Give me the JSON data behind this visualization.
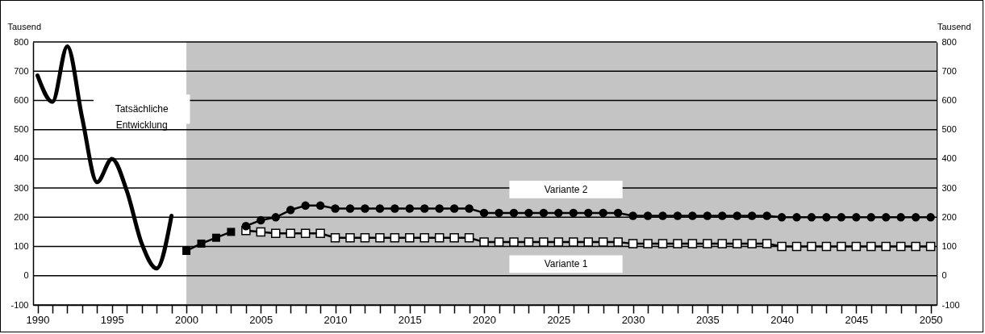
{
  "chart_data": {
    "type": "line",
    "ylabel": "Tausend",
    "y2label": "Tausend",
    "xlim": [
      1989.7,
      2050.4
    ],
    "ylim": [
      -100,
      800
    ],
    "y2lim": [
      -100,
      800
    ],
    "yticks": [
      -100,
      0,
      100,
      200,
      300,
      400,
      500,
      600,
      700,
      800
    ],
    "y2ticks": [
      -100,
      0,
      100,
      200,
      300,
      400,
      500,
      600,
      700,
      800
    ],
    "xticks": [
      1990,
      {
        "value": 1991,
        "label": null
      },
      {
        "value": 1992,
        "label": null
      },
      {
        "value": 1993,
        "label": null
      },
      {
        "value": 1994,
        "label": null
      },
      1995,
      {
        "value": 1996,
        "label": null
      },
      {
        "value": 1997,
        "label": null
      },
      {
        "value": 1998,
        "label": null
      },
      {
        "value": 1999,
        "label": null
      },
      2000,
      {
        "value": 2001,
        "label": null
      },
      {
        "value": 2002,
        "label": null
      },
      {
        "value": 2003,
        "label": null
      },
      {
        "value": 2004,
        "label": null
      },
      2005,
      {
        "value": 2006,
        "label": null
      },
      {
        "value": 2007,
        "label": null
      },
      {
        "value": 2008,
        "label": null
      },
      {
        "value": 2009,
        "label": null
      },
      2010,
      {
        "value": 2011,
        "label": null
      },
      {
        "value": 2012,
        "label": null
      },
      {
        "value": 2013,
        "label": null
      },
      {
        "value": 2014,
        "label": null
      },
      2015,
      {
        "value": 2016,
        "label": null
      },
      {
        "value": 2017,
        "label": null
      },
      {
        "value": 2018,
        "label": null
      },
      {
        "value": 2019,
        "label": null
      },
      2020,
      {
        "value": 2021,
        "label": null
      },
      {
        "value": 2022,
        "label": null
      },
      {
        "value": 2023,
        "label": null
      },
      {
        "value": 2024,
        "label": null
      },
      2025,
      {
        "value": 2026,
        "label": null
      },
      {
        "value": 2027,
        "label": null
      },
      {
        "value": 2028,
        "label": null
      },
      {
        "value": 2029,
        "label": null
      },
      2030,
      {
        "value": 2031,
        "label": null
      },
      {
        "value": 2032,
        "label": null
      },
      {
        "value": 2033,
        "label": null
      },
      {
        "value": 2034,
        "label": null
      },
      2035,
      {
        "value": 2036,
        "label": null
      },
      {
        "value": 2037,
        "label": null
      },
      {
        "value": 2038,
        "label": null
      },
      {
        "value": 2039,
        "label": null
      },
      2040,
      {
        "value": 2041,
        "label": null
      },
      {
        "value": 2042,
        "label": null
      },
      {
        "value": 2043,
        "label": null
      },
      {
        "value": 2044,
        "label": null
      },
      2045,
      {
        "value": 2046,
        "label": null
      },
      {
        "value": 2047,
        "label": null
      },
      {
        "value": 2048,
        "label": null
      },
      {
        "value": 2049,
        "label": null
      },
      2050
    ],
    "grid": "y",
    "bands": [
      {
        "axis": "x",
        "from": 2000,
        "to": 2050.4,
        "color": "#c4c4c4"
      }
    ],
    "series": [
      {
        "name": "Tatsächliche Entwicklung",
        "color": "#000000",
        "marker": "none",
        "x": [
          1990,
          1991,
          1992,
          1993,
          1994,
          1995,
          1996,
          1997,
          1998,
          1999
        ],
        "values": [
          685,
          595,
          785,
          540,
          320,
          400,
          290,
          110,
          25,
          205
        ]
      },
      {
        "color": "#000000",
        "marker": "square",
        "x": [
          2000,
          2001,
          2002,
          2003
        ],
        "values": [
          85,
          110,
          130,
          150
        ]
      },
      {
        "name": "Variante 1",
        "color": "#000000",
        "marker": "square",
        "x": [
          2004,
          2005,
          2006,
          2007,
          2008,
          2009,
          2010,
          2011,
          2012,
          2013,
          2014,
          2015,
          2016,
          2017,
          2018,
          2019,
          2020,
          2021,
          2022,
          2023,
          2024,
          2025,
          2026,
          2027,
          2028,
          2029,
          2030,
          2031,
          2032,
          2033,
          2034,
          2035,
          2036,
          2037,
          2038,
          2039,
          2040,
          2041,
          2042,
          2043,
          2044,
          2045,
          2046,
          2047,
          2048,
          2049,
          2050
        ],
        "values": [
          155,
          150,
          145,
          145,
          145,
          145,
          130,
          130,
          130,
          130,
          130,
          130,
          130,
          130,
          130,
          130,
          115,
          115,
          115,
          115,
          115,
          115,
          115,
          115,
          115,
          115,
          110,
          110,
          110,
          110,
          110,
          110,
          110,
          110,
          110,
          110,
          100,
          100,
          100,
          100,
          100,
          100,
          100,
          100,
          100,
          100,
          100
        ]
      },
      {
        "name": "Variante 2",
        "color": "#000000",
        "marker": "circle",
        "x": [
          2004,
          2005,
          2006,
          2007,
          2008,
          2009,
          2010,
          2011,
          2012,
          2013,
          2014,
          2015,
          2016,
          2017,
          2018,
          2019,
          2020,
          2021,
          2022,
          2023,
          2024,
          2025,
          2026,
          2027,
          2028,
          2029,
          2030,
          2031,
          2032,
          2033,
          2034,
          2035,
          2036,
          2037,
          2038,
          2039,
          2040,
          2041,
          2042,
          2043,
          2044,
          2045,
          2046,
          2047,
          2048,
          2049,
          2050
        ],
        "values": [
          170,
          190,
          200,
          225,
          240,
          240,
          230,
          230,
          230,
          230,
          230,
          230,
          230,
          230,
          230,
          230,
          215,
          215,
          215,
          215,
          215,
          215,
          215,
          215,
          215,
          215,
          205,
          205,
          205,
          205,
          205,
          205,
          205,
          205,
          205,
          205,
          200,
          200,
          200,
          200,
          200,
          200,
          200,
          200,
          200,
          200,
          200
        ]
      }
    ]
  }
}
